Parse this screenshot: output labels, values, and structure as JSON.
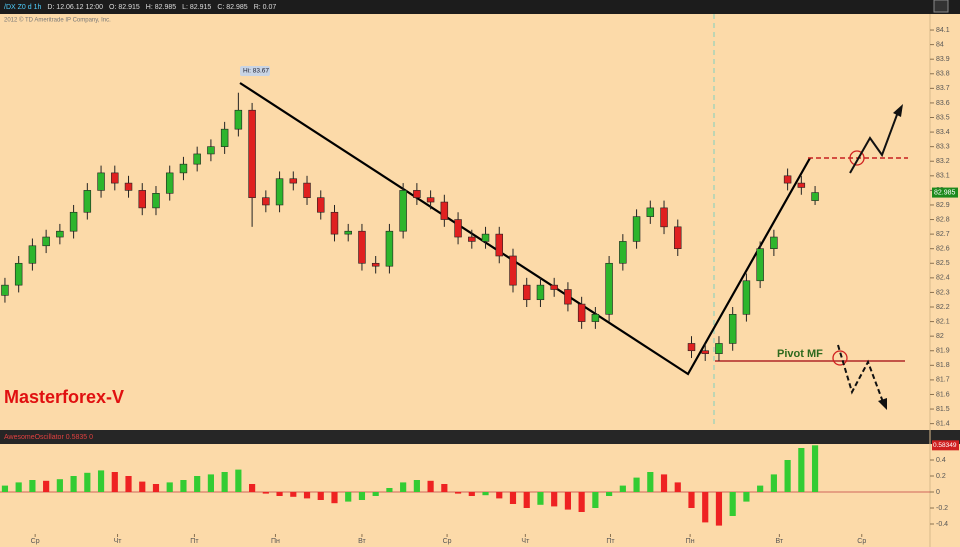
{
  "chart_data": {
    "type": "candlestick",
    "header": [
      "/DX Z0 d 1h",
      "D: 12.06.12 12:00",
      "O: 82.915",
      "H: 82.985",
      "L: 82.915",
      "C: 82.985",
      "R: 0.07"
    ],
    "copyright": "2012 © TD Ameritrade IP Company, Inc.",
    "hi_label": "Hi: 83.67",
    "brand": "Masterforex-V",
    "pivot_label": "Pivot MF",
    "x": [
      0,
      1,
      2,
      3,
      4,
      5,
      6,
      7,
      8,
      9,
      10,
      11,
      12,
      13,
      14,
      15,
      16,
      17,
      18,
      19,
      20,
      21,
      22,
      23,
      24,
      25,
      26,
      27,
      28,
      29,
      30,
      31,
      32,
      33,
      34,
      35,
      36,
      37,
      38,
      39,
      40,
      41,
      42,
      43,
      44,
      45,
      46,
      47,
      48,
      49,
      50,
      51,
      52,
      53,
      54,
      55,
      56,
      57,
      58,
      59
    ],
    "open": [
      82.28,
      82.35,
      82.5,
      82.62,
      82.68,
      82.72,
      82.85,
      83.0,
      83.12,
      83.05,
      83.0,
      82.88,
      82.98,
      83.12,
      83.18,
      83.25,
      83.3,
      83.42,
      83.55,
      82.95,
      82.9,
      83.08,
      83.05,
      82.95,
      82.85,
      82.7,
      82.72,
      82.5,
      82.48,
      82.72,
      83.0,
      82.95,
      82.92,
      82.8,
      82.68,
      82.65,
      82.7,
      82.55,
      82.35,
      82.25,
      82.35,
      82.32,
      82.22,
      82.1,
      82.15,
      82.5,
      82.65,
      82.82,
      82.88,
      82.75,
      81.95,
      81.9,
      81.88,
      81.95,
      82.15,
      82.38,
      82.6,
      83.1,
      83.05,
      82.93
    ],
    "high": [
      82.4,
      82.55,
      82.67,
      82.73,
      82.77,
      82.9,
      83.05,
      83.17,
      83.17,
      83.1,
      83.05,
      83.03,
      83.17,
      83.23,
      83.3,
      83.35,
      83.47,
      83.67,
      83.6,
      83.0,
      83.13,
      83.13,
      83.1,
      83.0,
      82.9,
      82.77,
      82.77,
      82.55,
      82.77,
      83.05,
      83.05,
      83.0,
      82.97,
      82.85,
      82.73,
      82.75,
      82.75,
      82.6,
      82.4,
      82.4,
      82.4,
      82.37,
      82.27,
      82.2,
      82.55,
      82.7,
      82.87,
      82.93,
      82.93,
      82.8,
      82.0,
      81.95,
      82.0,
      82.2,
      82.43,
      82.65,
      82.73,
      83.15,
      83.1,
      83.03
    ],
    "low": [
      82.23,
      82.3,
      82.45,
      82.57,
      82.63,
      82.67,
      82.8,
      82.95,
      83.0,
      82.95,
      82.83,
      82.83,
      82.93,
      83.07,
      83.13,
      83.2,
      83.25,
      83.37,
      82.75,
      82.85,
      82.85,
      83.0,
      82.9,
      82.8,
      82.65,
      82.65,
      82.45,
      82.43,
      82.43,
      82.67,
      82.9,
      82.87,
      82.75,
      82.63,
      82.6,
      82.6,
      82.5,
      82.3,
      82.2,
      82.2,
      82.27,
      82.17,
      82.05,
      82.05,
      82.1,
      82.45,
      82.6,
      82.77,
      82.7,
      82.55,
      81.85,
      81.83,
      81.83,
      81.9,
      82.1,
      82.33,
      82.55,
      83.0,
      82.97,
      82.9
    ],
    "close": [
      82.35,
      82.5,
      82.62,
      82.68,
      82.72,
      82.85,
      83.0,
      83.12,
      83.05,
      83.0,
      82.88,
      82.98,
      83.12,
      83.18,
      83.25,
      83.3,
      83.42,
      83.55,
      82.95,
      82.9,
      83.08,
      83.05,
      82.95,
      82.85,
      82.7,
      82.72,
      82.5,
      82.48,
      82.72,
      83.0,
      82.95,
      82.92,
      82.8,
      82.68,
      82.65,
      82.7,
      82.55,
      82.35,
      82.25,
      82.35,
      82.32,
      82.22,
      82.1,
      82.15,
      82.5,
      82.65,
      82.82,
      82.88,
      82.75,
      82.6,
      81.9,
      81.88,
      81.95,
      82.15,
      82.38,
      82.6,
      82.68,
      83.05,
      83.02,
      82.985
    ],
    "xlim": [
      -0.36,
      67.37
    ],
    "xticks": [
      {
        "value": 2.2,
        "label": "Ср"
      },
      {
        "value": 8.2,
        "label": "Чт"
      },
      {
        "value": 13.8,
        "label": "Пт"
      },
      {
        "value": 19.7,
        "label": "Пн"
      },
      {
        "value": 26,
        "label": "Вт"
      },
      {
        "value": 32.2,
        "label": "Ср"
      },
      {
        "value": 37.9,
        "label": "Чт"
      },
      {
        "value": 44.1,
        "label": "Пт"
      },
      {
        "value": 49.9,
        "label": "Пн"
      },
      {
        "value": 56.4,
        "label": "Вт"
      },
      {
        "value": 62.4,
        "label": "Ср"
      }
    ],
    "ylim": [
      81.37,
      84.21
    ],
    "yticks": [
      81.4,
      81.5,
      81.6,
      81.7,
      81.8,
      81.9,
      82,
      82.1,
      82.2,
      82.3,
      82.4,
      82.5,
      82.6,
      82.7,
      82.8,
      82.9,
      83,
      83.1,
      83.2,
      83.3,
      83.4,
      83.5,
      83.6,
      83.7,
      83.8,
      83.9,
      84,
      84.1
    ],
    "up_color": "#2db52d",
    "down_color": "#e02020",
    "oscillator": {
      "title": "AwesomeOscillator  0.5835  0",
      "values": [
        0.08,
        0.12,
        0.15,
        0.14,
        0.16,
        0.2,
        0.24,
        0.27,
        0.25,
        0.2,
        0.13,
        0.1,
        0.12,
        0.15,
        0.2,
        0.22,
        0.25,
        0.28,
        0.1,
        -0.02,
        -0.05,
        -0.06,
        -0.08,
        -0.1,
        -0.14,
        -0.12,
        -0.1,
        -0.05,
        0.05,
        0.12,
        0.15,
        0.14,
        0.1,
        -0.02,
        -0.05,
        -0.04,
        -0.08,
        -0.15,
        -0.2,
        -0.16,
        -0.18,
        -0.22,
        -0.25,
        -0.2,
        -0.05,
        0.08,
        0.18,
        0.25,
        0.22,
        0.12,
        -0.2,
        -0.38,
        -0.42,
        -0.3,
        -0.12,
        0.08,
        0.22,
        0.4,
        0.55,
        0.58349
      ],
      "ylim": [
        -0.5,
        0.6
      ],
      "yticks": [
        -0.4,
        -0.2,
        0,
        0.2,
        0.4
      ],
      "up_color": "#33cc33",
      "down_color": "#ee2222"
    }
  }
}
